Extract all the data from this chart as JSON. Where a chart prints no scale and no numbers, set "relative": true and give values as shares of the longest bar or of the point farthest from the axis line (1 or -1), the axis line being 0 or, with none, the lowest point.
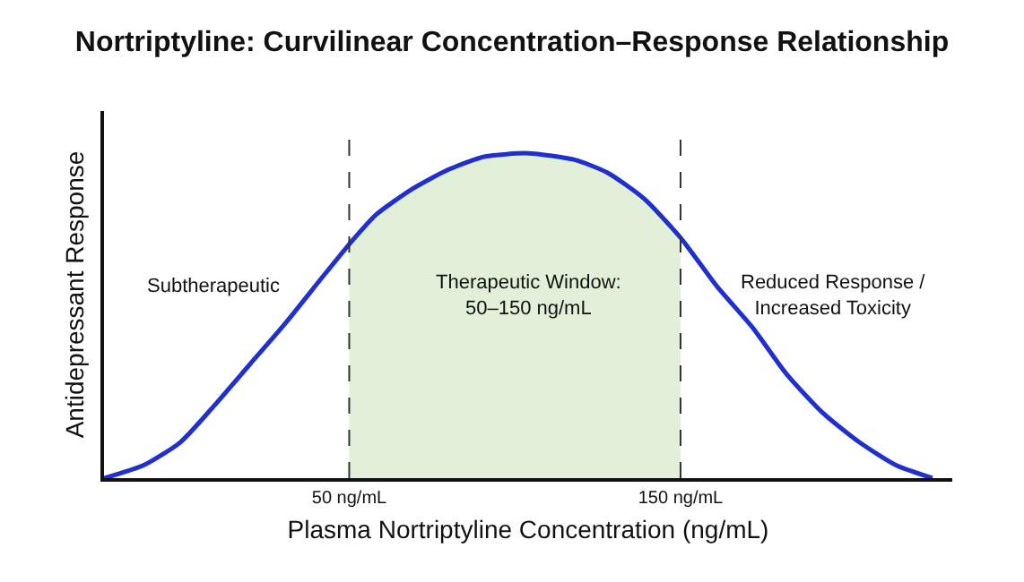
{
  "chart_data": {
    "type": "line",
    "title": "Nortriptyline: Curvilinear Concentration–Response Relationship",
    "xlabel": "Plasma Nortriptyline Concentration (ng/mL)",
    "ylabel": "Antidepressant Response",
    "relative": true,
    "x": [
      -24,
      -12,
      -1,
      9,
      20,
      31,
      42,
      50,
      58,
      69,
      80,
      91,
      104,
      118,
      128,
      139,
      150,
      161,
      172,
      182,
      193,
      204,
      215,
      226
    ],
    "series": [
      {
        "color": "#1f2fd0",
        "values": [
          0,
          0.04,
          0.11,
          0.22,
          0.35,
          0.48,
          0.62,
          0.72,
          0.81,
          0.89,
          0.95,
          0.99,
          1,
          0.98,
          0.94,
          0.86,
          0.74,
          0.59,
          0.46,
          0.32,
          0.2,
          0.11,
          0.04,
          0
        ]
      }
    ],
    "xlim": [
      -24,
      232
    ],
    "xticks": [
      {
        "value": 50,
        "label": "50 ng/mL"
      },
      {
        "value": 150,
        "label": "150 ng/mL"
      }
    ],
    "bands": [
      {
        "axis": "x",
        "from": 50,
        "to": 150,
        "color": "#e2f0d9"
      }
    ],
    "ref_lines": [
      {
        "axis": "x",
        "value": 50,
        "color": "#333333",
        "line_style": "dashed"
      },
      {
        "axis": "x",
        "value": 150,
        "color": "#333333",
        "line_style": "dashed"
      }
    ],
    "annotations": [
      "Subtherapeutic",
      "Therapeutic Window:\n50–150 ng/mL",
      "Reduced Response /\nIncreased Toxicity"
    ],
    "grid": false,
    "marker": "none",
    "line_style": "solid"
  }
}
